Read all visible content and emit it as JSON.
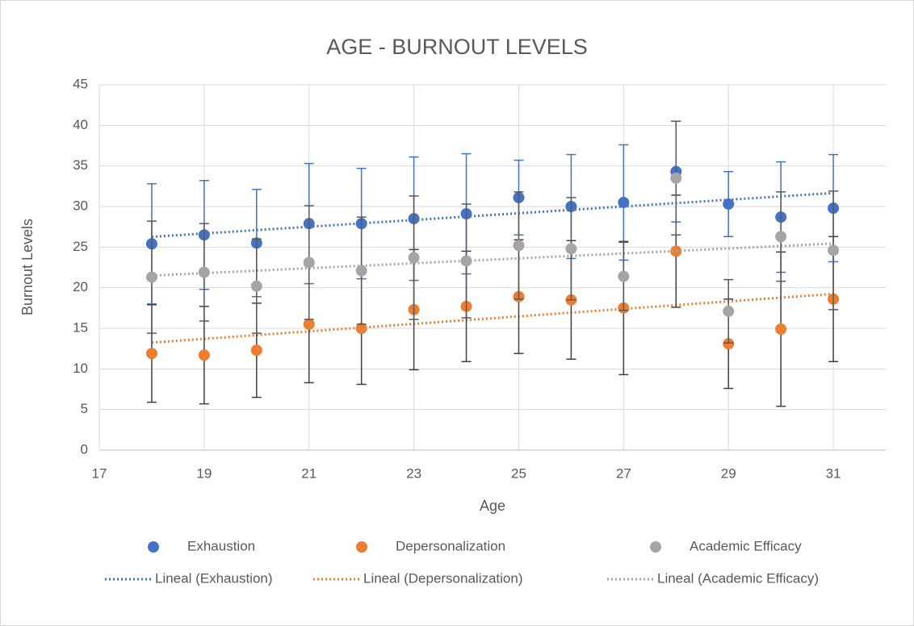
{
  "chart_data": {
    "type": "scatter",
    "title": "AGE - BURNOUT LEVELS",
    "x_label": "Age",
    "y_label": "Burnout Levels",
    "x": [
      18,
      19,
      20,
      21,
      22,
      23,
      24,
      25,
      26,
      27,
      28,
      29,
      30,
      31
    ],
    "series": [
      {
        "name": "Exhaustion",
        "color": "#4472c4",
        "errorbar_color": "#4472c4",
        "trendline": "Lineal (Exhaustion)",
        "values": [
          25.4,
          26.5,
          25.5,
          27.9,
          27.9,
          28.5,
          29.1,
          31.1,
          30,
          30.5,
          34.3,
          30.3,
          28.7,
          29.8
        ],
        "errors": [
          7.4,
          6.7,
          6.6,
          7.4,
          6.8,
          7.6,
          7.4,
          4.6,
          6.4,
          7.1,
          6.2,
          4,
          6.8,
          6.6
        ]
      },
      {
        "name": "Depersonalization",
        "color": "#ed7d31",
        "errorbar_color": "#404040",
        "trendline": "Lineal (Depersonalization)",
        "values": [
          11.9,
          11.7,
          12.3,
          15.5,
          15,
          17.3,
          17.7,
          18.9,
          18.5,
          17.5,
          24.5,
          13.1,
          14.9,
          18.6
        ],
        "errors": [
          6,
          6,
          5.8,
          7.2,
          6.9,
          7.4,
          6.8,
          7,
          7.3,
          8.2,
          6.9,
          5.5,
          9.5,
          7.7
        ]
      },
      {
        "name": "Academic Efficacy",
        "color": "#a5a5a5",
        "errorbar_color": "#595959",
        "trendline": "Lineal (Academic Efficacy)",
        "values": [
          21.3,
          21.9,
          20.2,
          23.1,
          22.1,
          23.7,
          23.3,
          25.2,
          24.8,
          21.4,
          33.5,
          17.1,
          26.3,
          24.6
        ],
        "errors": [
          6.9,
          6,
          5.8,
          7,
          6.6,
          7.6,
          7,
          6.6,
          6.3,
          4.2,
          7,
          3.9,
          5.5,
          7.3
        ]
      }
    ],
    "xlim": [
      17,
      32
    ],
    "xticks": [
      17,
      19,
      21,
      23,
      25,
      27,
      29,
      31
    ],
    "ylim": [
      0,
      45
    ],
    "yticks": [
      0,
      5,
      10,
      15,
      20,
      25,
      30,
      35,
      40,
      45
    ],
    "grid": true
  }
}
